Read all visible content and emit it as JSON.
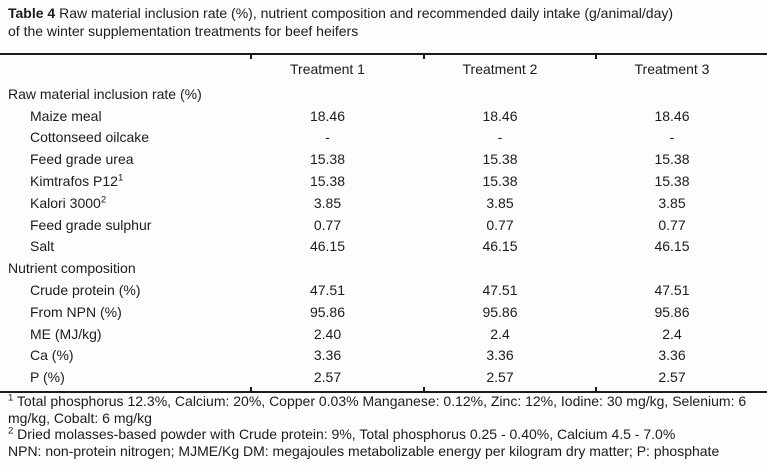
{
  "title": {
    "label": "Table 4",
    "line1_rest": " Raw material inclusion rate (%), nutrient composition and recommended daily intake (g/animal/day)",
    "line2": "of the winter supplementation treatments for beef heifers"
  },
  "table": {
    "columns": [
      "Treatment 1",
      "Treatment 2",
      "Treatment 3"
    ],
    "rows": [
      {
        "type": "section",
        "label": "Raw material inclusion rate (%)",
        "values": [
          "",
          "",
          ""
        ]
      },
      {
        "type": "item",
        "label": "Maize meal",
        "values": [
          "18.46",
          "18.46",
          "18.46"
        ]
      },
      {
        "type": "item",
        "label": "Cottonseed oilcake",
        "values": [
          "-",
          "-",
          "-"
        ]
      },
      {
        "type": "item",
        "label": "Feed grade urea",
        "values": [
          "15.38",
          "15.38",
          "15.38"
        ]
      },
      {
        "type": "item",
        "label": "Kimtrafos P12",
        "sup": "1",
        "values": [
          "15.38",
          "15.38",
          "15.38"
        ]
      },
      {
        "type": "item",
        "label": "Kalori 3000",
        "sup": "2",
        "values": [
          "3.85",
          "3.85",
          "3.85"
        ]
      },
      {
        "type": "item",
        "label": "Feed grade sulphur",
        "values": [
          "0.77",
          "0.77",
          "0.77"
        ]
      },
      {
        "type": "item",
        "label": "Salt",
        "values": [
          "46.15",
          "46.15",
          "46.15"
        ]
      },
      {
        "type": "section",
        "label": "Nutrient composition",
        "values": [
          "",
          "",
          ""
        ]
      },
      {
        "type": "item",
        "label": "Crude protein (%)",
        "values": [
          "47.51",
          "47.51",
          "47.51"
        ]
      },
      {
        "type": "item",
        "label": "From NPN (%)",
        "values": [
          "95.86",
          "95.86",
          "95.86"
        ]
      },
      {
        "type": "item",
        "label": "ME (MJ/kg)",
        "values": [
          "2.40",
          "2.4",
          "2.4"
        ]
      },
      {
        "type": "item",
        "label": "Ca (%)",
        "values": [
          "3.36",
          "3.36",
          "3.36"
        ]
      },
      {
        "type": "item",
        "label": "P (%)",
        "values": [
          "2.57",
          "2.57",
          "2.57"
        ]
      }
    ]
  },
  "footnotes": [
    {
      "sup": "1",
      "text": " Total phosphorus 12.3%, Calcium: 20%, Copper 0.03% Manganese: 0.12%, Zinc: 12%, Iodine: 30 mg/kg, Selenium: 6 mg/kg, Cobalt: 6 mg/kg"
    },
    {
      "sup": "2",
      "text": " Dried molasses-based powder with Crude protein: 9%, Total phosphorus 0.25 - 0.40%, Calcium 4.5 - 7.0%"
    },
    {
      "sup": "",
      "text": "NPN: non-protein nitrogen; MJME/Kg DM: megajoules metabolizable energy per kilogram dry matter; P: phosphate"
    }
  ]
}
